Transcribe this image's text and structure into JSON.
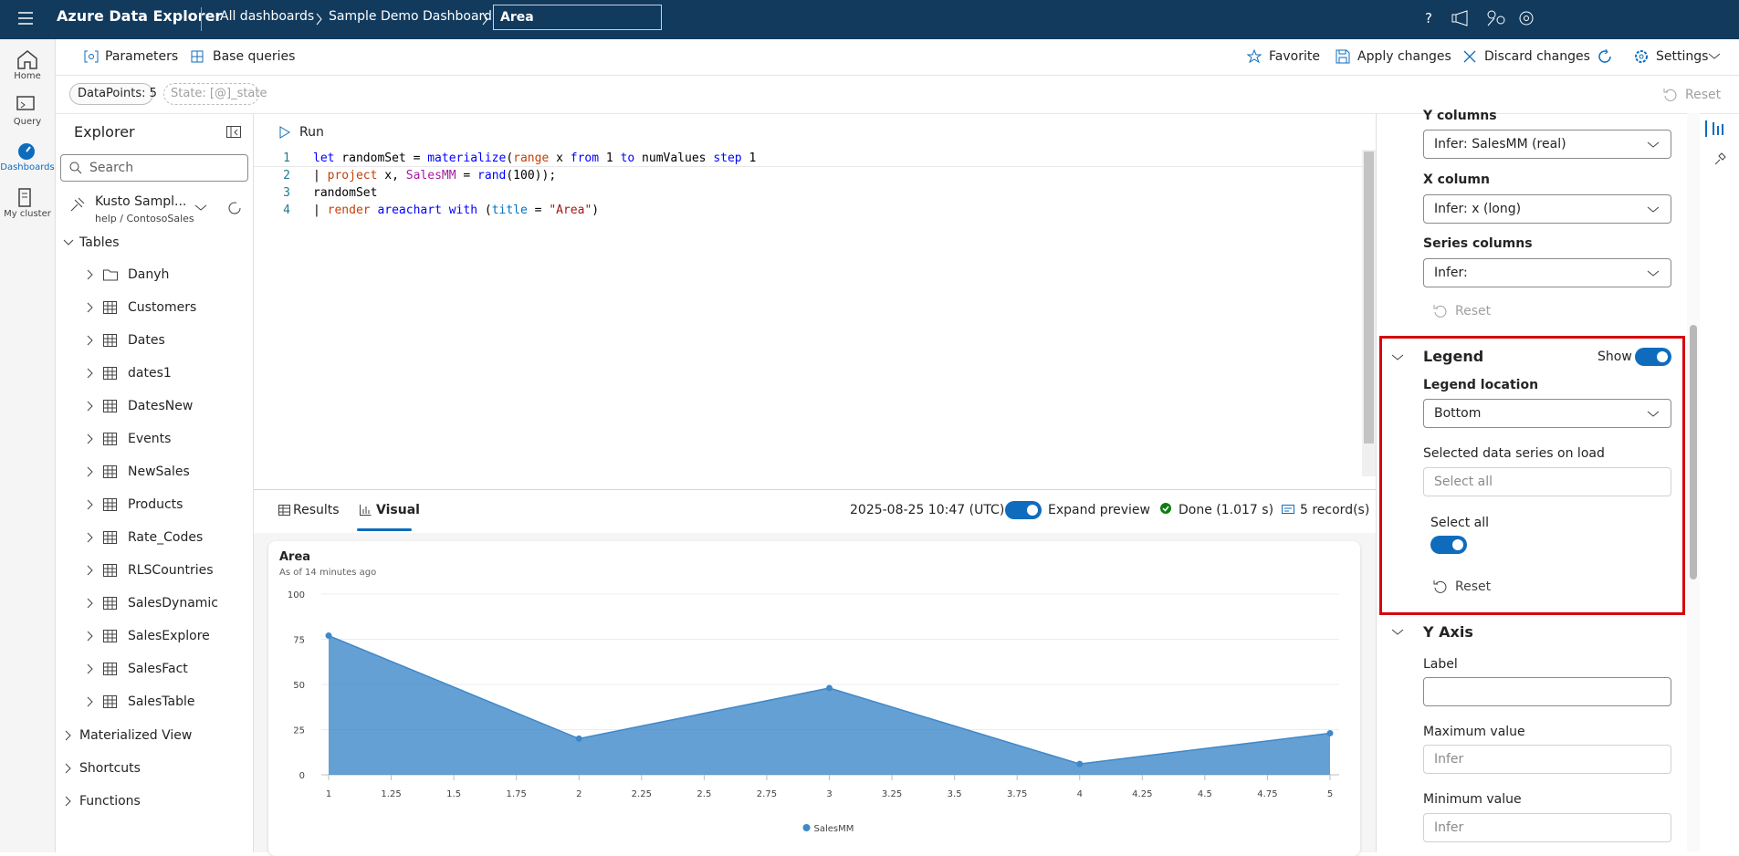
{
  "header": {
    "app_title": "Azure Data Explorer",
    "breadcrumbs": [
      "All dashboards",
      "Sample Demo Dashboard"
    ],
    "tile_name": "Area"
  },
  "nav": [
    "Home",
    "Query",
    "Dashboards",
    "My cluster"
  ],
  "toolbar": {
    "left": [
      "Parameters",
      "Base queries"
    ],
    "right": [
      "Favorite",
      "Apply changes",
      "Discard changes",
      "Settings"
    ]
  },
  "parameters": {
    "chips": [
      "DataPoints: 5",
      "State: [@]_state"
    ],
    "reset": "Reset"
  },
  "explorer": {
    "title": "Explorer",
    "search": "Search",
    "cluster": "Kusto Sampl...",
    "database": "help / ContosoSales",
    "tables_label": "Tables",
    "folders": [
      "Danyh"
    ],
    "tables": [
      "Customers",
      "Dates",
      "dates1",
      "DatesNew",
      "Events",
      "NewSales",
      "Products",
      "Rate_Codes",
      "RLSCountries",
      "SalesDynamic",
      "SalesExplore",
      "SalesFact",
      "SalesTable"
    ],
    "groups": [
      "Materialized View",
      "Shortcuts",
      "Functions"
    ]
  },
  "editor": {
    "run": "Run",
    "line_numbers": [
      1,
      2,
      3,
      4
    ],
    "lines": [
      [
        {
          "text": "let",
          "color": "#0000ff"
        },
        {
          "text": " randomSet = ",
          "color": "#000000"
        },
        {
          "text": "materialize",
          "color": "#0000ff"
        },
        {
          "text": "(",
          "color": "#000000"
        },
        {
          "text": "range",
          "color": "#c5400b"
        },
        {
          "text": " x ",
          "color": "#000000"
        },
        {
          "text": "from",
          "color": "#0000ff"
        },
        {
          "text": " 1 ",
          "color": "#000000"
        },
        {
          "text": "to",
          "color": "#0000ff"
        },
        {
          "text": " numValues ",
          "color": "#000000"
        },
        {
          "text": "step",
          "color": "#0000ff"
        },
        {
          "text": " 1",
          "color": "#000000"
        }
      ],
      [
        {
          "text": "| ",
          "color": "#000000"
        },
        {
          "text": "project",
          "color": "#c5400b"
        },
        {
          "text": " x, ",
          "color": "#000000"
        },
        {
          "text": "SalesMM",
          "color": "#a31aa0"
        },
        {
          "text": " = ",
          "color": "#000000"
        },
        {
          "text": "rand",
          "color": "#0000ff"
        },
        {
          "text": "(100));",
          "color": "#000000"
        }
      ],
      [
        {
          "text": "randomSet",
          "color": "#000000"
        }
      ],
      [
        {
          "text": "| ",
          "color": "#000000"
        },
        {
          "text": "render",
          "color": "#c5400b"
        },
        {
          "text": " areachart",
          "color": "#0000ff"
        },
        {
          "text": " with",
          "color": "#0000ff"
        },
        {
          "text": " (",
          "color": "#000000"
        },
        {
          "text": "title",
          "color": "#0070c1"
        },
        {
          "text": " = ",
          "color": "#000000"
        },
        {
          "text": "\"Area\"",
          "color": "#a31515"
        },
        {
          "text": ")",
          "color": "#000000"
        }
      ]
    ]
  },
  "results": {
    "tabs": [
      "Results",
      "Visual"
    ],
    "timestamp": "2025-08-25 10:47 (UTC)",
    "expand": "Expand preview",
    "status": "Done (1.017 s)",
    "records": "5 record(s)"
  },
  "settings": {
    "y_columns": {
      "label": "Y columns",
      "value": "Infer: SalesMM (real)"
    },
    "x_column": {
      "label": "X column",
      "value": "Infer: x (long)"
    },
    "series_columns": {
      "label": "Series columns",
      "value": "Infer:"
    },
    "reset": "Reset",
    "legend": {
      "title": "Legend",
      "show": "Show",
      "location_label": "Legend location",
      "location": "Bottom",
      "selected_label": "Selected data series on load",
      "selected_placeholder": "Select all",
      "select_all": "Select all",
      "reset": "Reset"
    },
    "y_axis": {
      "title": "Y Axis",
      "label": "Label",
      "max_label": "Maximum value",
      "max_placeholder": "Infer",
      "min_label": "Minimum value",
      "min_placeholder": "Infer"
    }
  },
  "chart_data": {
    "type": "area",
    "title": "Area",
    "subtitle": "As of 14 minutes ago",
    "x": [
      1,
      2,
      3,
      4,
      5
    ],
    "series": [
      {
        "name": "SalesMM",
        "color": "#3f88c9",
        "values": [
          77,
          20,
          48,
          6,
          23
        ]
      }
    ],
    "xlim": [
      1,
      5
    ],
    "xticks": [
      1,
      1.25,
      1.5,
      1.75,
      2,
      2.25,
      2.5,
      2.75,
      3,
      3.25,
      3.5,
      3.75,
      4,
      4.25,
      4.5,
      4.75,
      5
    ],
    "ylim": [
      0,
      100
    ],
    "yticks": [
      0,
      25,
      50,
      75,
      100
    ],
    "grid": true,
    "legend": "bottom"
  }
}
